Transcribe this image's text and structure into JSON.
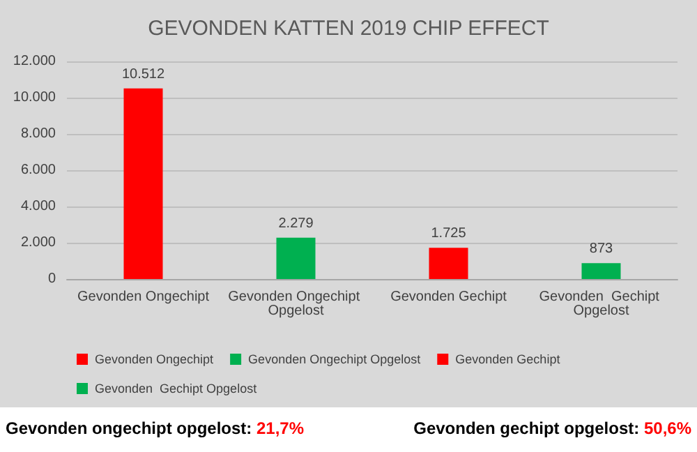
{
  "chart_data": {
    "type": "bar",
    "title": "GEVONDEN KATTEN 2019 CHIP EFFECT",
    "categories": [
      "Gevonden Ongechipt",
      "Gevonden Ongechipt Opgelost",
      "Gevonden Gechipt",
      "Gevonden  Gechipt Opgelost"
    ],
    "series": [
      {
        "name": "Gevonden Ongechipt",
        "color": "#ff0000",
        "values": [
          10512,
          null,
          null,
          null
        ],
        "value_labels": [
          "10.512",
          null,
          null,
          null
        ]
      },
      {
        "name": "Gevonden Ongechipt Opgelost",
        "color": "#00b050",
        "values": [
          null,
          2279,
          null,
          null
        ],
        "value_labels": [
          null,
          "2.279",
          null,
          null
        ]
      },
      {
        "name": "Gevonden Gechipt",
        "color": "#ff0000",
        "values": [
          null,
          null,
          1725,
          null
        ],
        "value_labels": [
          null,
          null,
          "1.725",
          null
        ]
      },
      {
        "name": "Gevonden  Gechipt Opgelost",
        "color": "#00b050",
        "values": [
          null,
          null,
          null,
          873
        ],
        "value_labels": [
          null,
          null,
          null,
          "873"
        ]
      }
    ],
    "stacked": true,
    "ylim": [
      0,
      12000
    ],
    "yticks": [
      0,
      {
        "value": 2000,
        "label": "2.000"
      },
      {
        "value": 4000,
        "label": "4.000"
      },
      {
        "value": 6000,
        "label": "6.000"
      },
      {
        "value": 8000,
        "label": "8.000"
      },
      {
        "value": 10000,
        "label": "10.000"
      },
      {
        "value": 12000,
        "label": "12.000"
      }
    ],
    "grid": "y",
    "legend": "bottom",
    "annotations": [
      "Gevonden ongechipt opgelost: 21,7%",
      "Gevonden gechipt opgelost: 50,6%"
    ]
  }
}
